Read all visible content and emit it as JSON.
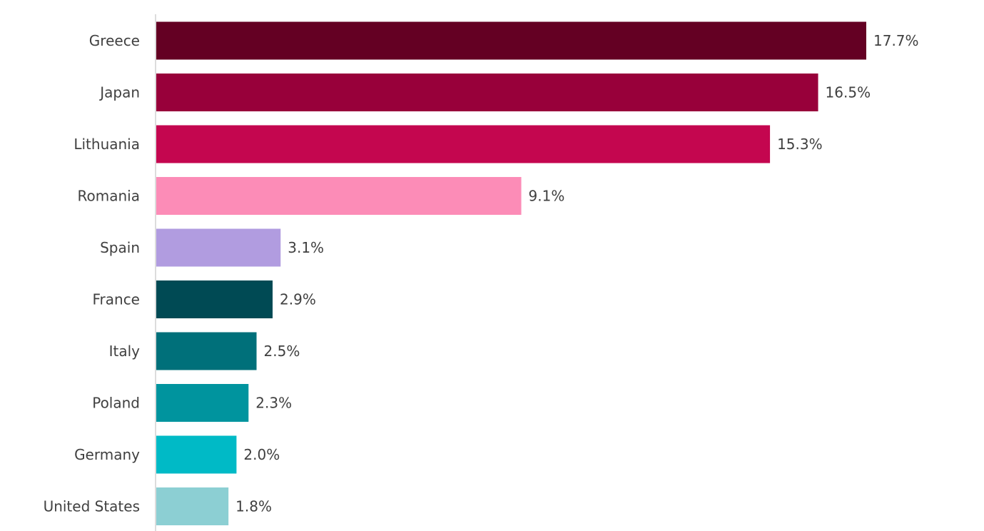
{
  "chart_data": {
    "type": "bar",
    "orientation": "horizontal",
    "categories": [
      "Greece",
      "Japan",
      "Lithuania",
      "Romania",
      "Spain",
      "France",
      "Italy",
      "Poland",
      "Germany",
      "United States"
    ],
    "values": [
      17.7,
      16.5,
      15.3,
      9.1,
      3.1,
      2.9,
      2.5,
      2.3,
      2.0,
      1.8
    ],
    "value_labels": [
      "17.7%",
      "16.5%",
      "15.3%",
      "9.1%",
      "3.1%",
      "2.9%",
      "2.5%",
      "2.3%",
      "2.0%",
      "1.8%"
    ],
    "bar_colors": [
      "#640023",
      "#98003A",
      "#C4064F",
      "#FC8CB7",
      "#B19CE0",
      "#004A54",
      "#00707A",
      "#00949E",
      "#00BAC6",
      "#8CCFD3"
    ],
    "title": "",
    "xlabel": "",
    "ylabel": "",
    "xlim": [
      0,
      17.7
    ],
    "grid": false,
    "legend": "none"
  }
}
